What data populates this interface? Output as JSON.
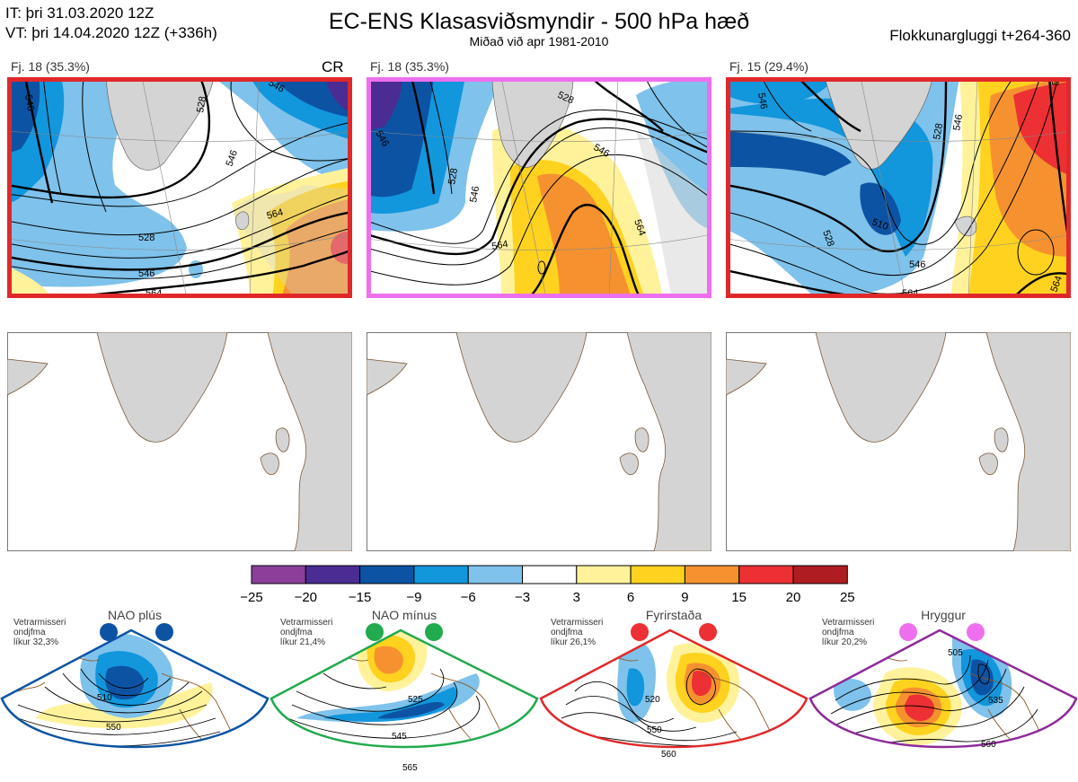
{
  "header": {
    "it_line": "IT: þri 31.03.2020 12Z",
    "vt_line": "VT: þri 14.04.2020 12Z  (+336h)",
    "title": "EC-ENS Klasasviðsmyndir - 500 hPa hæð",
    "subtitle": "Miðað við apr 1981-2010",
    "window": "Flokkunargluggi t+264-360"
  },
  "clusters": [
    {
      "label": "Fj. 18 (35.3%)",
      "tag": "CR",
      "border_color": "#e0282a",
      "contours": [
        "546",
        "528",
        "546",
        "564",
        "528",
        "546",
        "564",
        "546"
      ]
    },
    {
      "label": "Fj. 18 (35.3%)",
      "tag": "",
      "border_color": "#ee6fee",
      "contours": [
        "528",
        "546",
        "528",
        "546",
        "564",
        "564",
        "546"
      ]
    },
    {
      "label": "Fj. 15 (29.4%)",
      "tag": "",
      "border_color": "#e0282a",
      "contours": [
        "546",
        "528",
        "510",
        "546",
        "528",
        "564",
        "546",
        "564",
        "564"
      ]
    }
  ],
  "colorbar": {
    "colors": [
      "#8b3f9a",
      "#4a2c93",
      "#0d53a3",
      "#1296dc",
      "#7fc2eb",
      "#ffffff",
      "#fff29b",
      "#ffd21f",
      "#f5922f",
      "#ec3034",
      "#b01d20"
    ],
    "ticks": [
      "−25",
      "−20",
      "−15",
      "−9",
      "−6",
      "−3",
      "3",
      "6",
      "9",
      "15",
      "20",
      "25"
    ]
  },
  "regimes": [
    {
      "name": "NAO plús",
      "dot_color": "#0d53a3",
      "border_color": "#0d53a3",
      "season": "Vetrarmisseri",
      "anomaly": "ondjfma",
      "likelihood": "líkur 32,3%",
      "contours": [
        "510",
        "550"
      ]
    },
    {
      "name": "NAO mínus",
      "dot_color": "#21aa4e",
      "border_color": "#21aa4e",
      "season": "Vetrarmisseri",
      "anomaly": "ondjfma",
      "likelihood": "líkur 21,4%",
      "contours": [
        "525",
        "545",
        "565"
      ]
    },
    {
      "name": "Fyrirstaða",
      "dot_color": "#ec3034",
      "border_color": "#ec3034",
      "season": "Vetrarmisseri",
      "anomaly": "ondjfma",
      "likelihood": "líkur 26,1%",
      "contours": [
        "520",
        "550",
        "560"
      ]
    },
    {
      "name": "Hryggur",
      "dot_color": "#ee6fee",
      "border_color": "#8e2a9a",
      "season": "Vetrarmisseri",
      "anomaly": "ondjfma",
      "likelihood": "líkur 20,2%",
      "contours": [
        "505",
        "535",
        "560"
      ]
    }
  ]
}
